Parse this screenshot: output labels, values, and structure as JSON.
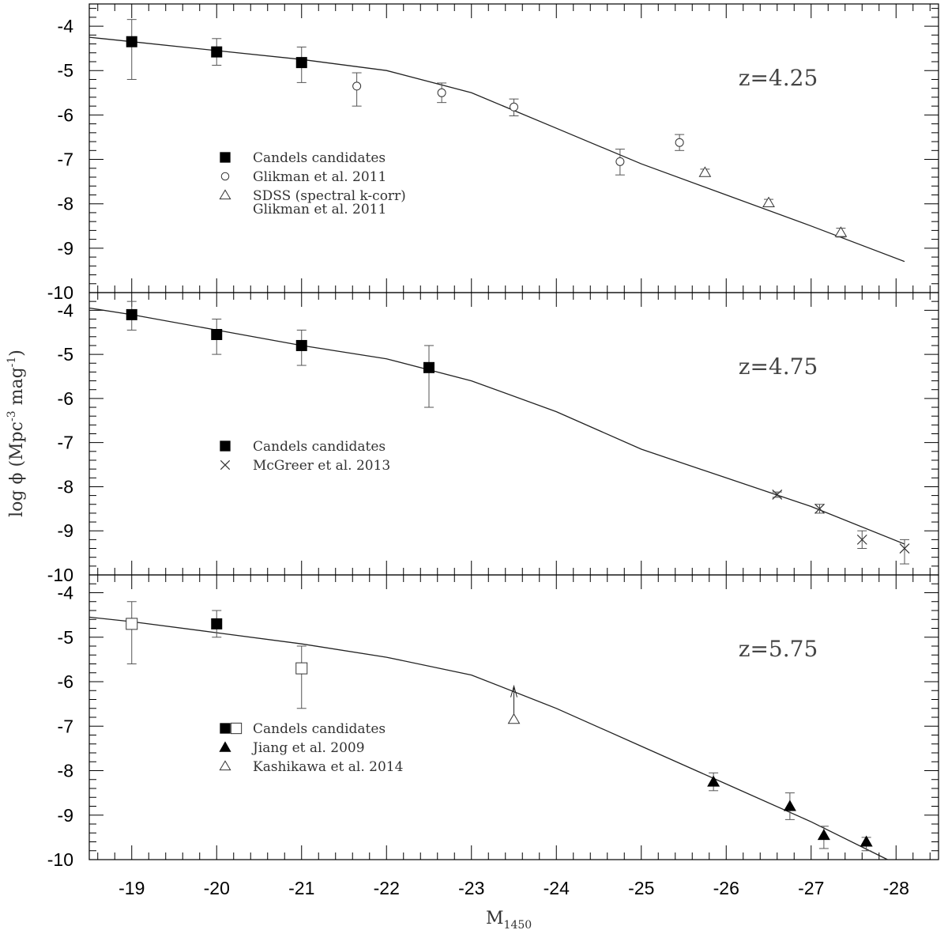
{
  "chart_data": {
    "type": "scatter",
    "xlabel": "M",
    "xlabel_sub": "1450",
    "ylabel": "log ϕ   (Mpc",
    "ylabel_exp1": "-3",
    "ylabel_mid": " mag",
    "ylabel_exp2": "-1",
    "ylabel_end": ")",
    "xlim": [
      -18.5,
      -28.5
    ],
    "xticks": [
      "-19",
      "-20",
      "-21",
      "-22",
      "-23",
      "-24",
      "-25",
      "-26",
      "-27",
      "-28"
    ],
    "panels": [
      {
        "annotation": "z=4.25",
        "ylim": [
          -10,
          -3.5
        ],
        "yticks": [
          "-4",
          "-5",
          "-6",
          "-7",
          "-8",
          "-9",
          "-10"
        ],
        "model": {
          "x": [
            -18.5,
            -19,
            -20,
            -21,
            -22,
            -23,
            -24,
            -25,
            -26,
            -27,
            -28.1
          ],
          "y": [
            -4.25,
            -4.35,
            -4.55,
            -4.75,
            -5.0,
            -5.5,
            -6.3,
            -7.1,
            -7.8,
            -8.5,
            -9.3
          ]
        },
        "series": [
          {
            "name": "Candels candidates",
            "marker": "square-filled",
            "x": [
              -19,
              -20,
              -21
            ],
            "y": [
              -4.35,
              -4.58,
              -4.82
            ],
            "yerr_lo": [
              0.85,
              0.3,
              0.45
            ],
            "yerr_hi": [
              0.5,
              0.3,
              0.35
            ]
          },
          {
            "name": "Glikman et al. 2011",
            "marker": "circle-open",
            "x": [
              -21.65,
              -22.65,
              -23.5,
              -24.75,
              -25.45
            ],
            "y": [
              -5.35,
              -5.5,
              -5.82,
              -7.05,
              -6.62
            ],
            "yerr_lo": [
              0.45,
              0.22,
              0.2,
              0.3,
              0.18
            ],
            "yerr_hi": [
              0.3,
              0.22,
              0.18,
              0.28,
              0.18
            ]
          },
          {
            "name": "SDSS (spectral k-corr)",
            "name2": "Glikman et al. 2011",
            "marker": "triangle-open",
            "x": [
              -25.75,
              -26.5,
              -27.35
            ],
            "y": [
              -7.3,
              -7.98,
              -8.65
            ],
            "yerr_lo": [
              0.08,
              0.08,
              0.1
            ],
            "yerr_hi": [
              0.08,
              0.08,
              0.1
            ]
          }
        ]
      },
      {
        "annotation": "z=4.75",
        "ylim": [
          -10,
          -3.6
        ],
        "yticks": [
          "-4",
          "-5",
          "-6",
          "-7",
          "-8",
          "-9",
          "-10"
        ],
        "model": {
          "x": [
            -18.5,
            -19,
            -20,
            -21,
            -22,
            -23,
            -24,
            -25,
            -26,
            -27,
            -28.1
          ],
          "y": [
            -3.95,
            -4.1,
            -4.45,
            -4.8,
            -5.1,
            -5.6,
            -6.3,
            -7.15,
            -7.8,
            -8.45,
            -9.3
          ]
        },
        "series": [
          {
            "name": "Candels candidates",
            "marker": "square-filled",
            "x": [
              -19,
              -20,
              -21,
              -22.5
            ],
            "y": [
              -4.1,
              -4.55,
              -4.8,
              -5.3
            ],
            "yerr_lo": [
              0.35,
              0.45,
              0.45,
              0.9
            ],
            "yerr_hi": [
              0.3,
              0.35,
              0.35,
              0.5
            ]
          },
          {
            "name": "McGreer et al. 2013",
            "marker": "cross",
            "x": [
              -26.6,
              -27.1,
              -27.6,
              -28.1
            ],
            "y": [
              -8.18,
              -8.5,
              -9.2,
              -9.4
            ],
            "yerr_lo": [
              0.06,
              0.1,
              0.2,
              0.35
            ],
            "yerr_hi": [
              0.06,
              0.1,
              0.2,
              0.2
            ]
          }
        ]
      },
      {
        "annotation": "z=5.75",
        "ylim": [
          -10,
          -3.6
        ],
        "yticks": [
          "-4",
          "-5",
          "-6",
          "-7",
          "-8",
          "-9",
          "-10"
        ],
        "model": {
          "x": [
            -18.5,
            -19,
            -20,
            -21,
            -22,
            -23,
            -24,
            -25,
            -26,
            -27,
            -27.9
          ],
          "y": [
            -4.55,
            -4.65,
            -4.9,
            -5.15,
            -5.45,
            -5.85,
            -6.6,
            -7.45,
            -8.3,
            -9.15,
            -10.0
          ]
        },
        "series": [
          {
            "name": "Candels candidates",
            "marker": "square-filled",
            "x": [
              -20
            ],
            "y": [
              -4.7
            ],
            "yerr_lo": [
              0.3
            ],
            "yerr_hi": [
              0.3
            ]
          },
          {
            "name": "",
            "marker": "square-open",
            "x": [
              -19,
              -21
            ],
            "y": [
              -4.7,
              -5.7
            ],
            "yerr_lo": [
              0.9,
              0.9
            ],
            "yerr_hi": [
              0.5,
              0.5
            ]
          },
          {
            "name": "Jiang et al. 2009",
            "marker": "triangle-filled",
            "x": [
              -25.85,
              -26.75,
              -27.15,
              -27.65
            ],
            "y": [
              -8.25,
              -8.8,
              -9.45,
              -9.6
            ],
            "yerr_lo": [
              0.2,
              0.3,
              0.3,
              0.2
            ],
            "yerr_hi": [
              0.2,
              0.3,
              0.2,
              0.1
            ]
          },
          {
            "name": "Kashikawa et al. 2014",
            "marker": "triangle-open",
            "x": [
              -23.5
            ],
            "y": [
              -6.85
            ],
            "yerr_lo": [
              0
            ],
            "yerr_hi": [
              0
            ],
            "lower_limit_arrow_to": -6.1
          }
        ]
      }
    ]
  }
}
